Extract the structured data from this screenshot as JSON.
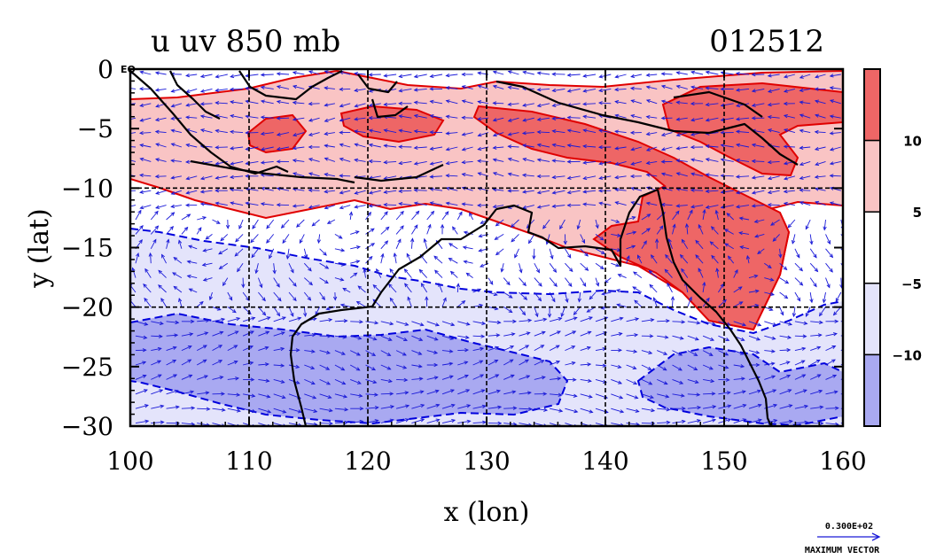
{
  "chart_data": {
    "type": "heatmap",
    "title": "u uv 850 mb",
    "date_label": "012512",
    "xlabel": "x (lon)",
    "ylabel": "y (lat)",
    "xlim": [
      100,
      160
    ],
    "ylim": [
      -30,
      0
    ],
    "x_ticks": [
      100,
      110,
      120,
      130,
      140,
      150,
      160
    ],
    "y_ticks": [
      0,
      -5,
      -10,
      -15,
      -20,
      -25,
      -30
    ],
    "y_tick_labels": [
      "0",
      "−5",
      "−10",
      "−15",
      "−20",
      "−25",
      "−30"
    ],
    "eq_label": "EQ",
    "gridlines_x": [
      110,
      120,
      130,
      140,
      150
    ],
    "gridlines_y": [
      -10,
      -20
    ],
    "colorbar": {
      "labels": [
        "10",
        "5",
        "−5",
        "−10"
      ],
      "colors": [
        "#ee6666",
        "#f9c4c4",
        "#ffffff",
        "#e4e4fb",
        "#a9a9f1"
      ]
    },
    "vector_key": {
      "value_label": "0.300E+02",
      "caption": "MAXIMUM VECTOR"
    },
    "colors": {
      "strong_pos": "#ee6666",
      "weak_pos": "#f9c4c4",
      "weak_neg": "#e4e4fb",
      "strong_neg": "#a9a9f1",
      "contour_pos": "#e00000",
      "contour_neg": "#0000dd",
      "vector": "#1a1ad8",
      "coast": "#000000"
    }
  }
}
